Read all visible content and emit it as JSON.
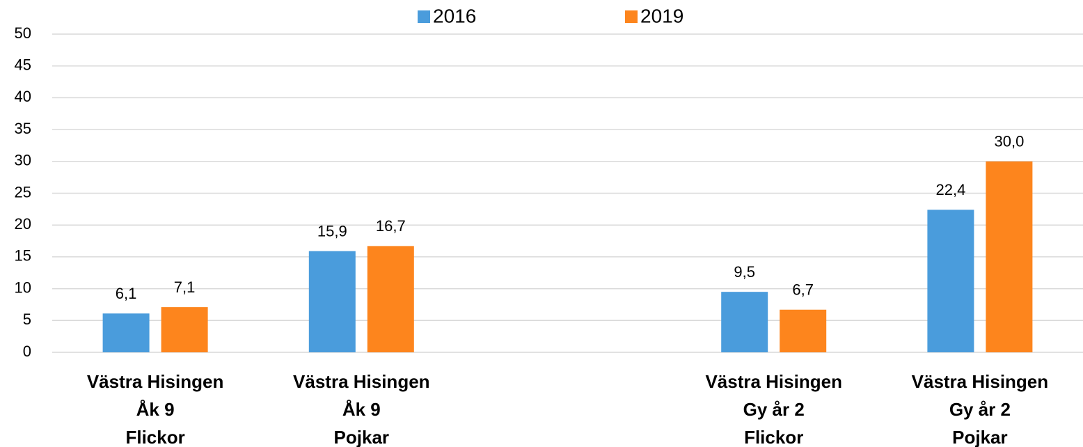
{
  "chart_data": {
    "type": "bar",
    "categories": [
      "Västra Hisingen\nÅk 9\nFlickor",
      "Västra Hisingen\nÅk 9\nPojkar",
      null,
      "Västra Hisingen\nGy år 2\nFlickor",
      "Västra Hisingen\nGy år 2\nPojkar"
    ],
    "series": [
      {
        "name": "2016",
        "color": "#4a9cdc",
        "values": [
          6.1,
          15.9,
          null,
          9.5,
          22.4
        ],
        "value_labels": [
          "6,1",
          "15,9",
          null,
          "9,5",
          "22,4"
        ]
      },
      {
        "name": "2019",
        "color": "#fd851d",
        "values": [
          7.1,
          16.7,
          null,
          6.7,
          30.0
        ],
        "value_labels": [
          "7,1",
          "16,7",
          null,
          "6,7",
          "30,0"
        ]
      }
    ],
    "ylim": [
      0,
      50
    ],
    "yticks": [
      0,
      5,
      10,
      15,
      20,
      25,
      30,
      35,
      40,
      45,
      50
    ],
    "grid": true,
    "legend": "top"
  }
}
